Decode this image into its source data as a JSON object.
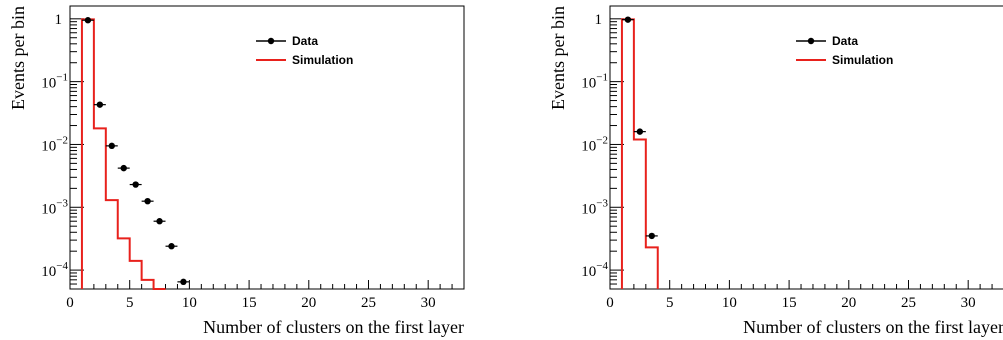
{
  "chart_data": [
    {
      "type": "line",
      "xlabel": "Number of clusters on the first layer",
      "ylabel": "Events per bin",
      "xlim": [
        0,
        33
      ],
      "ylim": [
        5e-05,
        1.6
      ],
      "log_y": true,
      "x_ticks": [
        0,
        5,
        10,
        15,
        20,
        25,
        30
      ],
      "y_ticks": [
        {
          "value": 0.0001,
          "base": "10",
          "exp": "−4"
        },
        {
          "value": 0.001,
          "base": "10",
          "exp": "−3"
        },
        {
          "value": 0.01,
          "base": "10",
          "exp": "−2"
        },
        {
          "value": 0.1,
          "base": "10",
          "exp": "−1"
        },
        {
          "value": 1,
          "base": "1",
          "exp": ""
        }
      ],
      "legend": {
        "position": "top-right",
        "entries": [
          "Data",
          "Simulation"
        ]
      },
      "series": [
        {
          "name": "Data",
          "style": "points",
          "color": "#000000",
          "x": [
            1.5,
            2.5,
            3.5,
            4.5,
            5.5,
            6.5,
            7.5,
            8.5,
            9.5
          ],
          "y": [
            0.95,
            0.043,
            0.0095,
            0.0042,
            0.0023,
            0.00125,
            0.0006,
            0.00024,
            6.5e-05
          ]
        },
        {
          "name": "Simulation",
          "style": "step",
          "color": "#e8211c",
          "bin_edges": [
            1,
            2,
            3,
            4,
            5,
            6,
            7,
            8
          ],
          "y": [
            0.98,
            0.018,
            0.0013,
            0.00032,
            0.00014,
            7e-05,
            5e-05
          ]
        }
      ]
    },
    {
      "type": "line",
      "xlabel": "Number of clusters on the first layer",
      "ylabel": "Events per bin",
      "xlim": [
        0,
        33
      ],
      "ylim": [
        5e-05,
        1.6
      ],
      "log_y": true,
      "x_ticks": [
        0,
        5,
        10,
        15,
        20,
        25,
        30
      ],
      "y_ticks": [
        {
          "value": 0.0001,
          "base": "10",
          "exp": "−4"
        },
        {
          "value": 0.001,
          "base": "10",
          "exp": "−3"
        },
        {
          "value": 0.01,
          "base": "10",
          "exp": "−2"
        },
        {
          "value": 0.1,
          "base": "10",
          "exp": "−1"
        },
        {
          "value": 1,
          "base": "1",
          "exp": ""
        }
      ],
      "legend": {
        "position": "top-right",
        "entries": [
          "Data",
          "Simulation"
        ]
      },
      "series": [
        {
          "name": "Data",
          "style": "points",
          "color": "#000000",
          "x": [
            1.5,
            2.5,
            3.5
          ],
          "y": [
            0.97,
            0.016,
            0.00035
          ]
        },
        {
          "name": "Simulation",
          "style": "step",
          "color": "#e8211c",
          "bin_edges": [
            1,
            2,
            3,
            4
          ],
          "y": [
            0.98,
            0.012,
            0.00023
          ]
        }
      ]
    }
  ]
}
